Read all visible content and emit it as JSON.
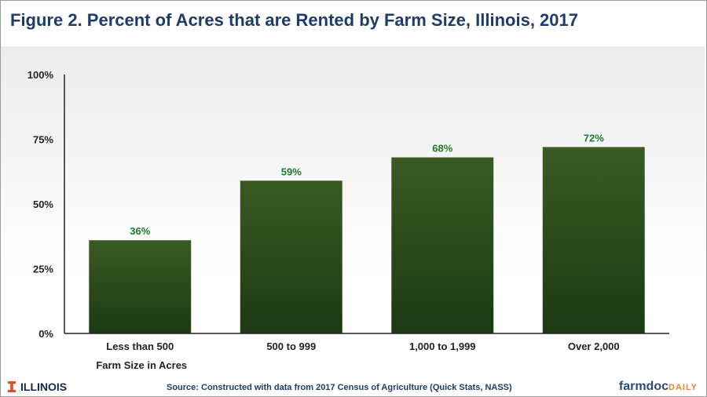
{
  "header": {
    "title": "Figure 2.  Percent of Acres that are Rented by Farm Size, Illinois, 2017"
  },
  "chart_data": {
    "type": "bar",
    "title": "Figure 2.  Percent of Acres that are Rented by Farm Size, Illinois, 2017",
    "xlabel": "Farm Size in Acres",
    "ylabel": "",
    "categories": [
      "Less than 500",
      "500 to 999",
      "1,000 to 1,999",
      "Over 2,000"
    ],
    "values": [
      36,
      59,
      68,
      72
    ],
    "data_labels": [
      "36%",
      "59%",
      "68%",
      "72%"
    ],
    "ylim": [
      0,
      100
    ],
    "yticks": [
      0,
      25,
      50,
      75,
      100
    ],
    "ytick_labels": [
      "0%",
      "25%",
      "50%",
      "75%",
      "100%"
    ],
    "grid": false,
    "legend": "none",
    "colors": {
      "bar_top": "#3a5a22",
      "bar_bottom": "#1c3a14",
      "data_label": "#1e7a2e",
      "title": "#1d3b6b",
      "axis": "#222222"
    }
  },
  "footer": {
    "logo_text": "ILLINOIS",
    "logo_icon": "block-i-icon",
    "source": "Source: Constructed with data from  2017 Census of Agriculture (Quick Stats, NASS)",
    "brand_primary": "farmdoc",
    "brand_secondary": "DAILY"
  }
}
